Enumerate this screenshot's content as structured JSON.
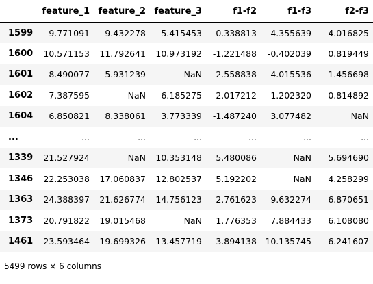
{
  "dataframe": {
    "index_header": "",
    "columns": [
      "feature_1",
      "feature_2",
      "feature_3",
      "f1-f2",
      "f1-f3",
      "f2-f3"
    ],
    "rows": [
      {
        "index": "1599",
        "values": [
          "9.771091",
          "9.432278",
          "5.415453",
          "0.338813",
          "4.355639",
          "4.016825"
        ]
      },
      {
        "index": "1600",
        "values": [
          "10.571153",
          "11.792641",
          "10.973192",
          "-1.221488",
          "-0.402039",
          "0.819449"
        ]
      },
      {
        "index": "1601",
        "values": [
          "8.490077",
          "5.931239",
          "NaN",
          "2.558838",
          "4.015536",
          "1.456698"
        ]
      },
      {
        "index": "1602",
        "values": [
          "7.387595",
          "NaN",
          "6.185275",
          "2.017212",
          "1.202320",
          "-0.814892"
        ]
      },
      {
        "index": "1604",
        "values": [
          "6.850821",
          "8.338061",
          "3.773339",
          "-1.487240",
          "3.077482",
          "NaN"
        ]
      },
      {
        "index": "...",
        "values": [
          "...",
          "...",
          "...",
          "...",
          "...",
          "..."
        ]
      },
      {
        "index": "1339",
        "values": [
          "21.527924",
          "NaN",
          "10.353148",
          "5.480086",
          "NaN",
          "5.694690"
        ]
      },
      {
        "index": "1346",
        "values": [
          "22.253038",
          "17.060837",
          "12.802537",
          "5.192202",
          "NaN",
          "4.258299"
        ]
      },
      {
        "index": "1363",
        "values": [
          "24.388397",
          "21.626774",
          "14.756123",
          "2.761623",
          "9.632274",
          "6.870651"
        ]
      },
      {
        "index": "1373",
        "values": [
          "20.791822",
          "19.015468",
          "NaN",
          "1.776353",
          "7.884433",
          "6.108080"
        ]
      },
      {
        "index": "1461",
        "values": [
          "23.593464",
          "19.699326",
          "13.457719",
          "3.894138",
          "10.135745",
          "6.241607"
        ]
      }
    ],
    "shape_text": "5499 rows × 6 columns"
  }
}
